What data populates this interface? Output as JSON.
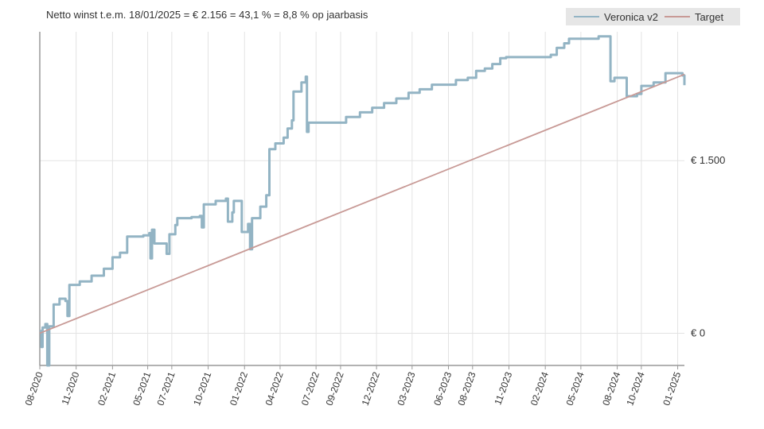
{
  "chart_data": {
    "type": "line",
    "title": "Netto winst t.e.m. 18/01/2025 = € 2.156 = 43,1 % = 8,8 % op jaarbasis",
    "x_range": [
      "2020-08-01",
      "2025-01-18"
    ],
    "ylim": [
      -280,
      2620
    ],
    "y_ticks": [
      {
        "value": 0,
        "label": "€ 0"
      },
      {
        "value": 1500,
        "label": "€ 1.500"
      }
    ],
    "x_ticks": [
      {
        "date": "2020-08-01",
        "label": "08-2020"
      },
      {
        "date": "2020-11-01",
        "label": "11-2020"
      },
      {
        "date": "2021-02-01",
        "label": "02-2021"
      },
      {
        "date": "2021-05-01",
        "label": "05-2021"
      },
      {
        "date": "2021-07-01",
        "label": "07-2021"
      },
      {
        "date": "2021-10-01",
        "label": "10-2021"
      },
      {
        "date": "2022-01-01",
        "label": "01-2022"
      },
      {
        "date": "2022-04-01",
        "label": "04-2022"
      },
      {
        "date": "2022-07-01",
        "label": "07-2022"
      },
      {
        "date": "2022-09-01",
        "label": "09-2022"
      },
      {
        "date": "2022-12-01",
        "label": "12-2022"
      },
      {
        "date": "2023-03-01",
        "label": "03-2023"
      },
      {
        "date": "2023-06-01",
        "label": "06-2023"
      },
      {
        "date": "2023-08-01",
        "label": "08-2023"
      },
      {
        "date": "2023-11-01",
        "label": "11-2023"
      },
      {
        "date": "2024-02-01",
        "label": "02-2024"
      },
      {
        "date": "2024-05-01",
        "label": "05-2024"
      },
      {
        "date": "2024-08-01",
        "label": "08-2024"
      },
      {
        "date": "2024-10-01",
        "label": "10-2024"
      },
      {
        "date": "2025-01-01",
        "label": "01-2025"
      }
    ],
    "grid": true,
    "y_axis_position": "right",
    "legend_position": "top-right",
    "series": [
      {
        "name": "Veronica v2",
        "color": "#93b4c4",
        "points": [
          [
            "2020-08-01",
            20
          ],
          [
            "2020-08-05",
            -120
          ],
          [
            "2020-08-08",
            50
          ],
          [
            "2020-08-15",
            80
          ],
          [
            "2020-08-20",
            -280
          ],
          [
            "2020-08-25",
            60
          ],
          [
            "2020-09-05",
            250
          ],
          [
            "2020-09-20",
            300
          ],
          [
            "2020-10-05",
            280
          ],
          [
            "2020-10-10",
            150
          ],
          [
            "2020-10-15",
            420
          ],
          [
            "2020-11-10",
            450
          ],
          [
            "2020-12-10",
            500
          ],
          [
            "2021-01-10",
            560
          ],
          [
            "2021-02-01",
            660
          ],
          [
            "2021-02-20",
            700
          ],
          [
            "2021-03-10",
            840
          ],
          [
            "2021-04-20",
            850
          ],
          [
            "2021-05-05",
            870
          ],
          [
            "2021-05-08",
            650
          ],
          [
            "2021-05-12",
            900
          ],
          [
            "2021-05-18",
            780
          ],
          [
            "2021-06-15",
            780
          ],
          [
            "2021-06-18",
            690
          ],
          [
            "2021-06-25",
            860
          ],
          [
            "2021-07-10",
            940
          ],
          [
            "2021-07-15",
            1000
          ],
          [
            "2021-08-20",
            1010
          ],
          [
            "2021-09-10",
            1020
          ],
          [
            "2021-09-15",
            920
          ],
          [
            "2021-09-20",
            1120
          ],
          [
            "2021-10-20",
            1150
          ],
          [
            "2021-11-15",
            1170
          ],
          [
            "2021-11-20",
            970
          ],
          [
            "2021-12-01",
            1050
          ],
          [
            "2021-12-05",
            1150
          ],
          [
            "2021-12-20",
            1150
          ],
          [
            "2021-12-25",
            880
          ],
          [
            "2022-01-10",
            950
          ],
          [
            "2022-01-15",
            730
          ],
          [
            "2022-01-20",
            1000
          ],
          [
            "2022-02-10",
            1100
          ],
          [
            "2022-02-25",
            1200
          ],
          [
            "2022-03-05",
            1600
          ],
          [
            "2022-03-20",
            1650
          ],
          [
            "2022-04-10",
            1700
          ],
          [
            "2022-04-20",
            1780
          ],
          [
            "2022-05-01",
            1850
          ],
          [
            "2022-05-05",
            2100
          ],
          [
            "2022-05-25",
            2180
          ],
          [
            "2022-06-05",
            2230
          ],
          [
            "2022-06-08",
            1750
          ],
          [
            "2022-06-12",
            1830
          ],
          [
            "2022-09-05",
            1830
          ],
          [
            "2022-09-15",
            1880
          ],
          [
            "2022-10-20",
            1920
          ],
          [
            "2022-11-20",
            1960
          ],
          [
            "2022-12-20",
            2000
          ],
          [
            "2023-01-20",
            2040
          ],
          [
            "2023-02-20",
            2090
          ],
          [
            "2023-03-20",
            2120
          ],
          [
            "2023-04-20",
            2160
          ],
          [
            "2023-06-10",
            2160
          ],
          [
            "2023-06-20",
            2200
          ],
          [
            "2023-07-20",
            2220
          ],
          [
            "2023-08-10",
            2280
          ],
          [
            "2023-09-01",
            2300
          ],
          [
            "2023-09-20",
            2340
          ],
          [
            "2023-10-10",
            2390
          ],
          [
            "2023-10-25",
            2400
          ],
          [
            "2024-01-20",
            2400
          ],
          [
            "2024-02-15",
            2420
          ],
          [
            "2024-03-01",
            2480
          ],
          [
            "2024-03-20",
            2520
          ],
          [
            "2024-04-01",
            2560
          ],
          [
            "2024-06-10",
            2560
          ],
          [
            "2024-06-15",
            2580
          ],
          [
            "2024-07-10",
            2580
          ],
          [
            "2024-07-15",
            2190
          ],
          [
            "2024-07-25",
            2220
          ],
          [
            "2024-08-20",
            2220
          ],
          [
            "2024-08-25",
            2060
          ],
          [
            "2024-09-20",
            2080
          ],
          [
            "2024-10-01",
            2150
          ],
          [
            "2024-11-01",
            2180
          ],
          [
            "2024-12-01",
            2260
          ],
          [
            "2025-01-05",
            2260
          ],
          [
            "2025-01-13",
            2240
          ],
          [
            "2025-01-18",
            2156
          ]
        ]
      },
      {
        "name": "Target",
        "color": "#c89a96",
        "points": [
          [
            "2020-08-01",
            0
          ],
          [
            "2025-01-18",
            2250
          ]
        ]
      }
    ]
  }
}
